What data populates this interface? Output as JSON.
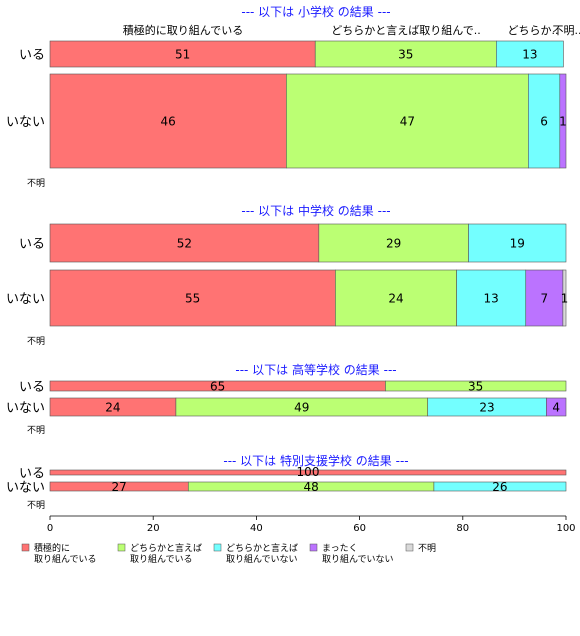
{
  "chart_data": {
    "type": "bar",
    "orientation": "horizontal",
    "stacked": true,
    "xlim": [
      0,
      100
    ],
    "x_ticks": [
      "0",
      "20",
      "40",
      "60",
      "80",
      "100"
    ],
    "top_labels": [
      "積極的に取り組んでいる",
      "どちらかと言えば取り組んで..",
      "どちらか..",
      "不明.."
    ],
    "categories": [
      {
        "lines": [
          "積極的に",
          "取り組んでいる"
        ],
        "color": "#ff7373"
      },
      {
        "lines": [
          "どちらかと言えば",
          "取り組んでいる"
        ],
        "color": "#bbff73"
      },
      {
        "lines": [
          "どちらかと言えば",
          "取り組んでいない"
        ],
        "color": "#73ffff"
      },
      {
        "lines": [
          "まったく",
          "取り組んでいない"
        ],
        "color": "#bb73ff"
      },
      {
        "lines": [
          "不明"
        ],
        "color": "#d9d9d9"
      }
    ],
    "panels": [
      {
        "title": "--- 以下は 小学校 の結果 ---",
        "rows": [
          {
            "label": "いる",
            "values": [
              51.4,
              35.1,
              13.0,
              0,
              0
            ],
            "labels": [
              "51",
              "35",
              "13",
              "",
              ""
            ]
          },
          {
            "label": "いない",
            "values": [
              45.8,
              46.9,
              6.1,
              1.2,
              0
            ],
            "labels": [
              "46",
              "47",
              "6",
              "1",
              ""
            ]
          },
          {
            "label": "不明",
            "values": [],
            "labels": []
          }
        ]
      },
      {
        "title": "--- 以下は 中学校 の結果 ---",
        "rows": [
          {
            "label": "いる",
            "values": [
              52.1,
              29.0,
              18.9,
              0,
              0
            ],
            "labels": [
              "52",
              "29",
              "19",
              "",
              ""
            ]
          },
          {
            "label": "いない",
            "values": [
              55.3,
              23.5,
              13.4,
              7.2,
              0.6
            ],
            "labels": [
              "55",
              "24",
              "13",
              "7",
              "1"
            ]
          },
          {
            "label": "不明",
            "values": [],
            "labels": []
          }
        ]
      },
      {
        "title": "--- 以下は 高等学校 の結果 ---",
        "rows": [
          {
            "label": "いる",
            "values": [
              65.0,
              35.0,
              0,
              0,
              0
            ],
            "labels": [
              "65",
              "35",
              "",
              "",
              ""
            ]
          },
          {
            "label": "いない",
            "values": [
              24.4,
              48.8,
              23.0,
              3.8,
              0
            ],
            "labels": [
              "24",
              "49",
              "23",
              "4",
              ""
            ]
          },
          {
            "label": "不明",
            "values": [],
            "labels": []
          }
        ]
      },
      {
        "title": "--- 以下は 特別支援学校 の結果 ---",
        "rows": [
          {
            "label": "いる",
            "values": [
              100,
              0,
              0,
              0,
              0
            ],
            "labels": [
              "100",
              "",
              "",
              "",
              ""
            ]
          },
          {
            "label": "いない",
            "values": [
              26.8,
              47.6,
              25.6,
              0,
              0
            ],
            "labels": [
              "27",
              "48",
              "26",
              "",
              ""
            ]
          },
          {
            "label": "不明",
            "values": [],
            "labels": []
          }
        ]
      }
    ]
  }
}
